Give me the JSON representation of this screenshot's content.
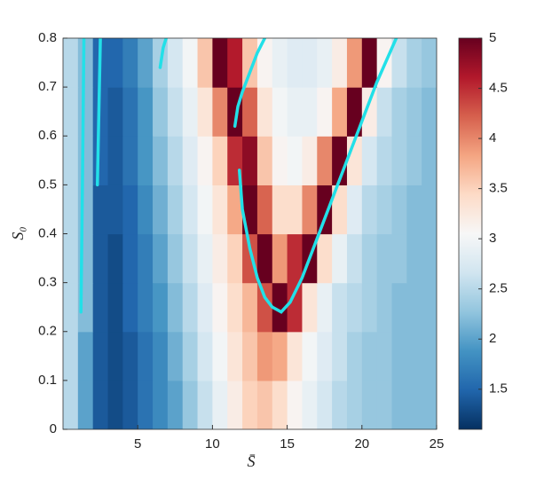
{
  "chart_data": {
    "type": "contour",
    "xlabel": "S̄",
    "ylabel": "S₀",
    "xlim": [
      0,
      25
    ],
    "ylim": [
      0,
      0.8
    ],
    "xticks": [
      5,
      10,
      15,
      20,
      25
    ],
    "yticks": [
      0,
      0.1,
      0.2,
      0.3,
      0.4,
      0.5,
      0.6,
      0.7,
      0.8
    ],
    "clim": [
      1.1,
      5
    ],
    "cticks": [
      1.5,
      2,
      2.5,
      3,
      3.5,
      4,
      4.5,
      5
    ],
    "colormap": [
      "#053061",
      "#2166ac",
      "#4393c3",
      "#92c5de",
      "#d1e5f0",
      "#f7f7f7",
      "#fddbc7",
      "#f4a582",
      "#d6604d",
      "#b2182b",
      "#67001f"
    ],
    "x": [
      0.5,
      1.5,
      2.5,
      3.5,
      4.5,
      5.5,
      6.5,
      7.5,
      8.5,
      9.5,
      10.5,
      11.5,
      12.5,
      13.5,
      14.5,
      15.5,
      16.5,
      17.5,
      18.5,
      19.5,
      20.5,
      21.5,
      22.5,
      23.5,
      24.5
    ],
    "y": [
      0.05,
      0.15,
      0.25,
      0.35,
      0.45,
      0.55,
      0.65,
      0.75
    ],
    "z": [
      [
        2.5,
        2.0,
        1.4,
        1.3,
        1.4,
        1.6,
        1.8,
        2.0,
        2.3,
        2.6,
        2.9,
        3.2,
        3.5,
        3.6,
        3.4,
        3.1,
        2.9,
        2.7,
        2.5,
        2.4,
        2.3,
        2.3,
        2.2,
        2.2,
        2.2
      ],
      [
        2.5,
        2.0,
        1.4,
        1.3,
        1.4,
        1.6,
        1.8,
        2.1,
        2.4,
        2.7,
        3.0,
        3.3,
        3.6,
        3.9,
        3.8,
        3.3,
        3.0,
        2.8,
        2.6,
        2.4,
        2.3,
        2.3,
        2.2,
        2.2,
        2.2
      ],
      [
        2.5,
        2.2,
        1.4,
        1.3,
        1.5,
        1.7,
        1.9,
        2.2,
        2.5,
        2.8,
        3.1,
        3.4,
        3.7,
        4.3,
        5.0,
        4.5,
        3.3,
        2.9,
        2.6,
        2.5,
        2.4,
        2.3,
        2.2,
        2.2,
        2.2
      ],
      [
        2.5,
        2.2,
        1.4,
        1.3,
        1.5,
        1.7,
        2.0,
        2.3,
        2.6,
        2.9,
        3.2,
        3.5,
        4.3,
        5.0,
        3.9,
        4.5,
        5.0,
        3.4,
        2.9,
        2.6,
        2.4,
        2.3,
        2.3,
        2.2,
        2.2
      ],
      [
        2.5,
        2.2,
        1.4,
        1.4,
        1.5,
        1.8,
        2.1,
        2.4,
        2.7,
        3.0,
        3.3,
        3.8,
        5.0,
        4.2,
        3.4,
        3.4,
        4.0,
        5.0,
        3.4,
        2.8,
        2.5,
        2.4,
        2.3,
        2.2,
        2.2
      ],
      [
        2.5,
        2.2,
        1.5,
        1.4,
        1.6,
        1.9,
        2.2,
        2.5,
        2.8,
        3.1,
        3.5,
        4.5,
        4.8,
        3.6,
        3.1,
        3.0,
        3.2,
        4.0,
        5.0,
        3.3,
        2.7,
        2.5,
        2.4,
        2.3,
        2.2
      ],
      [
        2.5,
        2.2,
        1.5,
        1.4,
        1.6,
        1.9,
        2.3,
        2.6,
        2.9,
        3.3,
        4.0,
        5.0,
        4.2,
        3.3,
        3.0,
        2.9,
        2.9,
        3.1,
        3.8,
        5.0,
        3.2,
        2.6,
        2.4,
        2.3,
        2.2
      ],
      [
        2.5,
        2.2,
        1.5,
        1.5,
        1.7,
        2.0,
        2.4,
        2.7,
        3.0,
        3.6,
        5.0,
        4.6,
        3.6,
        3.1,
        2.9,
        2.8,
        2.8,
        2.9,
        3.2,
        3.9,
        5.0,
        3.1,
        2.6,
        2.4,
        2.3
      ]
    ],
    "curve_color": "#22e0e8",
    "curves": [
      {
        "x": [
          11.8,
          12.0,
          12.5,
          13.0,
          13.5,
          14.0,
          14.6,
          15.2,
          16,
          17,
          18,
          19,
          20,
          21,
          22.3
        ],
        "y": [
          0.53,
          0.45,
          0.37,
          0.31,
          0.27,
          0.25,
          0.24,
          0.26,
          0.31,
          0.39,
          0.47,
          0.55,
          0.63,
          0.71,
          0.8
        ]
      },
      {
        "x": [
          11.5,
          11.7,
          12.0,
          12.5,
          13.0,
          13.5
        ],
        "y": [
          0.62,
          0.66,
          0.69,
          0.73,
          0.77,
          0.8
        ]
      },
      {
        "x": [
          6.5,
          6.7,
          6.9
        ],
        "y": [
          0.74,
          0.78,
          0.8
        ]
      },
      {
        "x": [
          1.2,
          1.3,
          1.4
        ],
        "y": [
          0.24,
          0.5,
          0.8
        ]
      },
      {
        "x": [
          2.3,
          2.5
        ],
        "y": [
          0.5,
          0.8
        ]
      }
    ]
  }
}
